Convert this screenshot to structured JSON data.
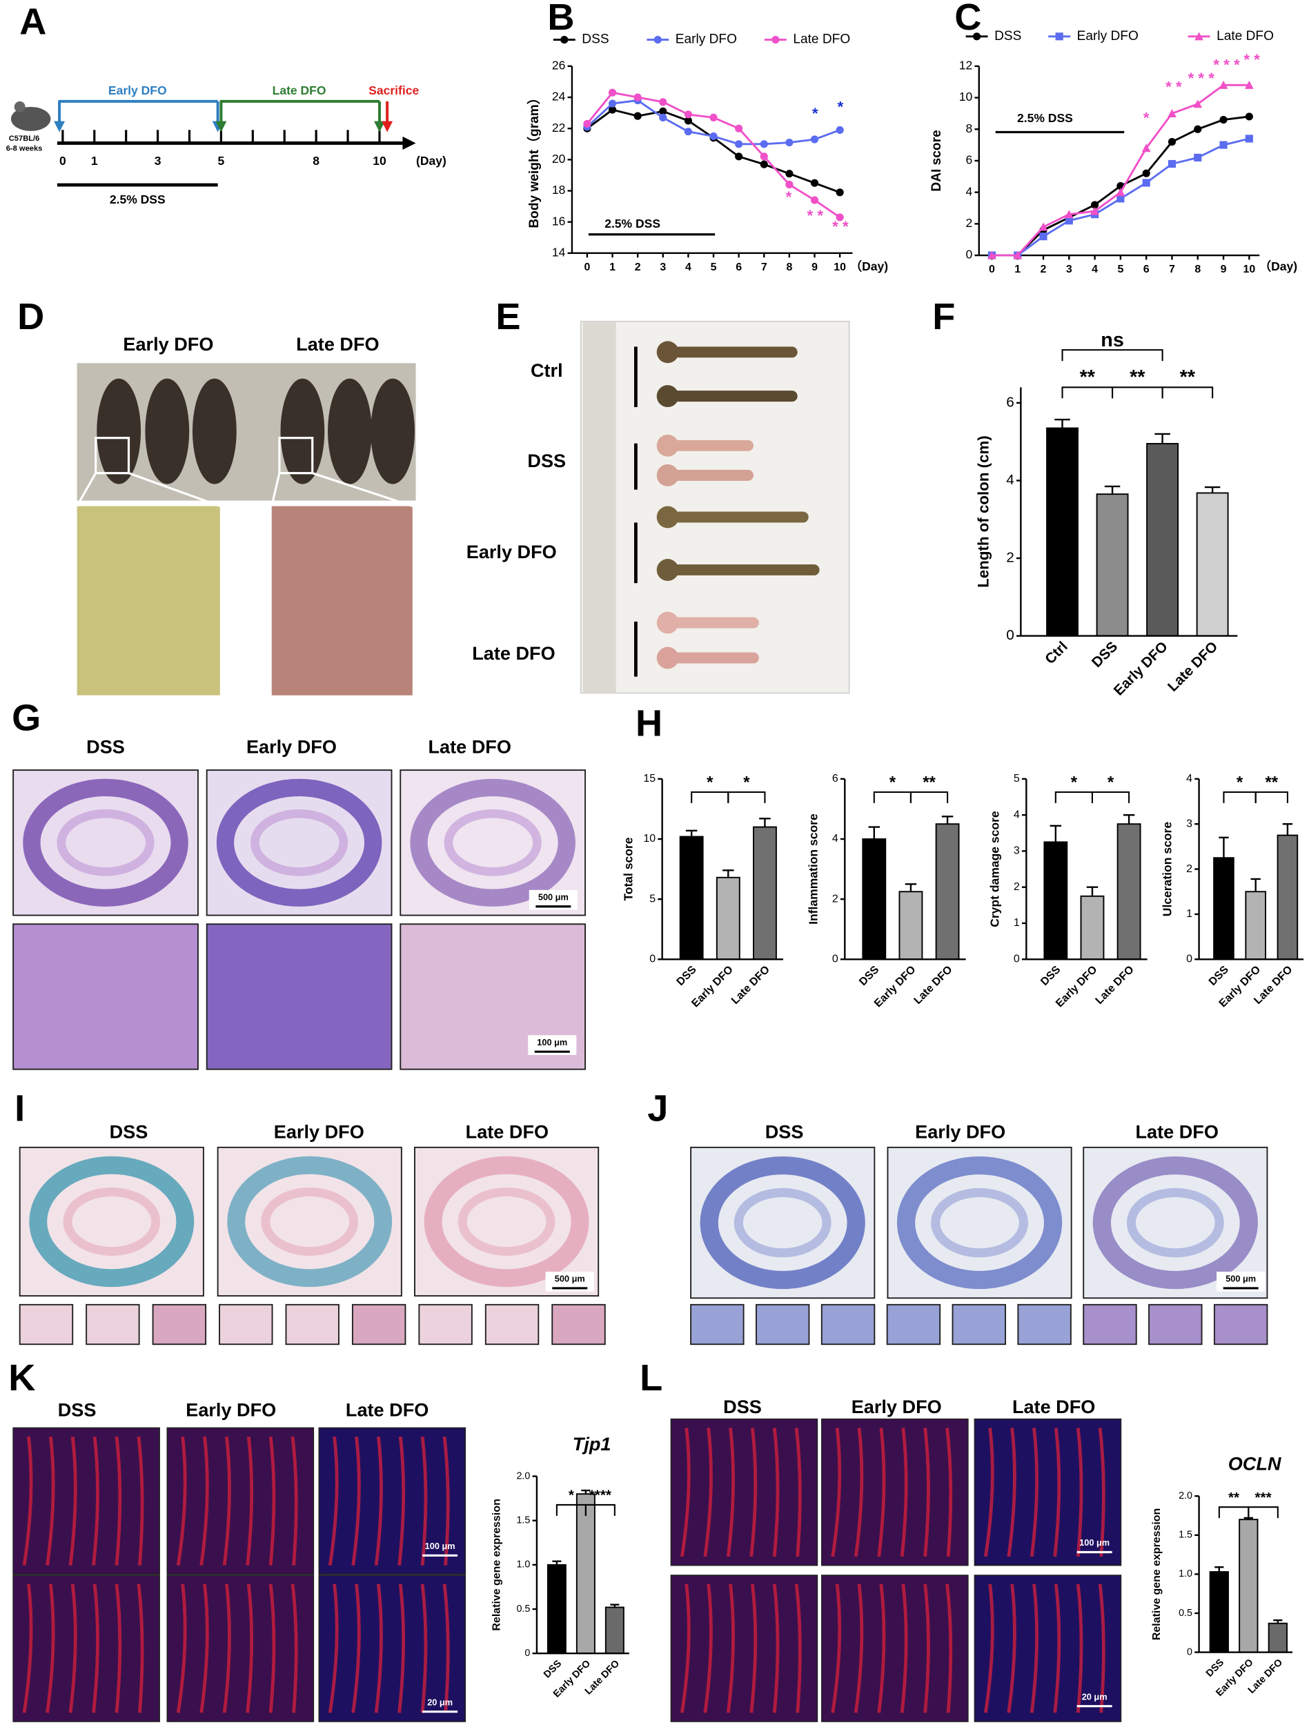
{
  "figure": {
    "panel_letters": [
      "A",
      "B",
      "C",
      "D",
      "E",
      "F",
      "G",
      "H",
      "I",
      "J",
      "K",
      "L"
    ],
    "A": {
      "early_dfo": "Early DFO",
      "late_dfo": "Late DFO",
      "sacrifice": "Sacrifice",
      "strain": "C57BL/6",
      "age": "6-8 weeks",
      "days": [
        0,
        1,
        3,
        5,
        8,
        10
      ],
      "day_unit": "(Day)",
      "dss": "2.5% DSS"
    },
    "D": {
      "groups": [
        "Early DFO",
        "Late  DFO"
      ]
    },
    "E": {
      "groups": [
        "Ctrl",
        "DSS",
        "Early DFO",
        "Late  DFO"
      ]
    },
    "G": {
      "groups": [
        "DSS",
        "Early DFO",
        "Late  DFO"
      ],
      "scale_bars": [
        "500 μm",
        "100 μm"
      ]
    },
    "I": {
      "groups": [
        "DSS",
        "Early DFO",
        "Late  DFO"
      ],
      "scale_bars": [
        "500 μm"
      ]
    },
    "J": {
      "groups": [
        "DSS",
        "Early DFO",
        "Late  DFO"
      ],
      "scale_bars": [
        "500 μm"
      ]
    },
    "K": {
      "groups": [
        "DSS",
        "Early DFO",
        "Late  DFO"
      ],
      "scale_bars": [
        "100 μm",
        "20 μm"
      ]
    },
    "L": {
      "groups": [
        "DSS",
        "Early DFO",
        "Late  DFO"
      ],
      "scale_bars": [
        "100 μm",
        "20 μm"
      ]
    }
  },
  "chart_data": [
    {
      "type": "line",
      "y_label": "Body weight（gram）",
      "x_label": "（Day)",
      "x": [
        0,
        1,
        2,
        3,
        4,
        5,
        6,
        7,
        8,
        9,
        10
      ],
      "xlim": [
        -0.6,
        10.5
      ],
      "xticks": [
        0,
        1,
        2,
        3,
        4,
        5,
        6,
        7,
        8,
        9,
        10
      ],
      "ylim": [
        14,
        26
      ],
      "yticks": [
        14,
        16,
        18,
        20,
        22,
        24,
        26
      ],
      "series": [
        {
          "name": "DSS",
          "color": "#000000",
          "marker": "circle",
          "values": [
            22.0,
            23.2,
            22.8,
            23.1,
            22.5,
            21.4,
            20.2,
            19.7,
            19.1,
            18.5,
            17.9
          ]
        },
        {
          "name": "Early DFO",
          "color": "#5b6cf0",
          "marker": "circle",
          "values": [
            22.1,
            23.6,
            23.8,
            22.7,
            21.8,
            21.5,
            21.0,
            21.0,
            21.1,
            21.3,
            21.9
          ]
        },
        {
          "name": "Late  DFO",
          "color": "#f050c8",
          "marker": "circle",
          "values": [
            22.3,
            24.3,
            24.0,
            23.7,
            22.9,
            22.7,
            22.0,
            20.2,
            18.4,
            17.4,
            16.3
          ]
        }
      ],
      "annotations": [
        {
          "text": "2.5% DSS",
          "color": "#000000"
        },
        {
          "text": "*",
          "color": "#1a2fd0"
        },
        {
          "text": "*",
          "color": "#1a2fd0"
        },
        {
          "text": "*",
          "color": "#f050c8"
        },
        {
          "text": "* *",
          "color": "#f050c8"
        },
        {
          "text": "* *",
          "color": "#f050c8"
        }
      ]
    },
    {
      "type": "line",
      "y_label": "DAI score",
      "x_label": "（Day)",
      "x": [
        0,
        1,
        2,
        3,
        4,
        5,
        6,
        7,
        8,
        9,
        10
      ],
      "xlim": [
        -0.5,
        10.4
      ],
      "xticks": [
        0,
        1,
        2,
        3,
        4,
        5,
        6,
        7,
        8,
        9,
        10
      ],
      "ylim": [
        0,
        12
      ],
      "yticks": [
        0,
        2,
        4,
        6,
        8,
        10,
        12
      ],
      "series": [
        {
          "name": "DSS",
          "color": "#000000",
          "marker": "circle",
          "values": [
            0,
            0,
            1.6,
            2.4,
            3.2,
            4.4,
            5.2,
            7.2,
            8.0,
            8.6,
            8.8
          ]
        },
        {
          "name": "Early DFO",
          "color": "#5b6cf0",
          "marker": "square",
          "values": [
            0,
            0,
            1.2,
            2.2,
            2.6,
            3.6,
            4.6,
            5.8,
            6.2,
            7.0,
            7.4
          ]
        },
        {
          "name": "Late DFO",
          "color": "#f050c8",
          "marker": "triangle",
          "values": [
            0,
            0,
            1.8,
            2.6,
            2.8,
            4.0,
            6.8,
            9.0,
            9.6,
            10.8,
            10.8
          ]
        }
      ],
      "annotations": [
        {
          "text": "2.5% DSS",
          "color": "#000000"
        },
        {
          "text": "*",
          "color": "#f050c8"
        },
        {
          "text": "* *",
          "color": "#f050c8"
        },
        {
          "text": "* * *",
          "color": "#f050c8"
        },
        {
          "text": "* * *",
          "color": "#f050c8"
        },
        {
          "text": "* *",
          "color": "#f050c8"
        }
      ]
    },
    {
      "type": "bar",
      "y_label": "Length of colon (cm)",
      "categories": [
        "Ctrl",
        "DSS",
        "Early DFO",
        "Late DFO"
      ],
      "values": [
        5.35,
        3.65,
        4.95,
        3.68
      ],
      "errors": [
        0.22,
        0.2,
        0.25,
        0.15
      ],
      "colors": [
        "#000000",
        "#8c8c8c",
        "#5a5a5a",
        "#d0d0d0"
      ],
      "ylim": [
        0,
        6.4
      ],
      "yticks": [
        0,
        2,
        4,
        6
      ],
      "annotations": [
        "ns",
        "**",
        "**",
        "**"
      ]
    },
    {
      "type": "bar",
      "y_label": "Total score",
      "categories": [
        "DSS",
        "Early DFO",
        "Late DFO"
      ],
      "values": [
        10.2,
        6.8,
        11.0
      ],
      "errors": [
        0.5,
        0.6,
        0.7
      ],
      "colors": [
        "#000000",
        "#b3b3b3",
        "#707070"
      ],
      "ylim": [
        0,
        15
      ],
      "yticks": [
        0,
        5,
        10,
        15
      ],
      "annotations": [
        "*",
        "*"
      ]
    },
    {
      "type": "bar",
      "y_label": "Inflammation score",
      "categories": [
        "DSS",
        "Early DFO",
        "Late DFO"
      ],
      "values": [
        4.0,
        2.25,
        4.5
      ],
      "errors": [
        0.4,
        0.25,
        0.25
      ],
      "colors": [
        "#000000",
        "#b3b3b3",
        "#707070"
      ],
      "ylim": [
        0,
        6
      ],
      "yticks": [
        0,
        2,
        4,
        6
      ],
      "annotations": [
        "*",
        "**"
      ]
    },
    {
      "type": "bar",
      "y_label": "Crypt damage score",
      "categories": [
        "DSS",
        "Early DFO",
        "Late DFO"
      ],
      "values": [
        3.25,
        1.75,
        3.75
      ],
      "errors": [
        0.45,
        0.25,
        0.25
      ],
      "colors": [
        "#000000",
        "#b3b3b3",
        "#707070"
      ],
      "ylim": [
        0,
        5
      ],
      "yticks": [
        0,
        1,
        2,
        3,
        4,
        5
      ],
      "annotations": [
        "*",
        "*"
      ]
    },
    {
      "type": "bar",
      "y_label": "Ulceration score",
      "categories": [
        "DSS",
        "Early DFO",
        "Late DFO"
      ],
      "values": [
        2.25,
        1.5,
        2.75
      ],
      "errors": [
        0.45,
        0.28,
        0.25
      ],
      "colors": [
        "#000000",
        "#b3b3b3",
        "#707070"
      ],
      "ylim": [
        0,
        4
      ],
      "yticks": [
        0,
        1,
        2,
        3,
        4
      ],
      "annotations": [
        "*",
        "**"
      ]
    },
    {
      "type": "bar",
      "title": "Tjp1",
      "y_label": "Relative gene expression",
      "categories": [
        "DSS",
        "Early DFO",
        "Late DFO"
      ],
      "values": [
        1.0,
        1.8,
        0.52
      ],
      "errors": [
        0.04,
        0.04,
        0.03
      ],
      "colors": [
        "#000000",
        "#a8a8a8",
        "#6a6a6a"
      ],
      "ylim": [
        0,
        2
      ],
      "yticks": [
        0,
        0.5,
        {
          "value": 1,
          "label": "1.0"
        },
        1.5,
        {
          "value": 2,
          "label": "2.0"
        }
      ],
      "annotations": [
        "*",
        "****"
      ]
    },
    {
      "type": "bar",
      "title": "OCLN",
      "y_label": "Relative gene expression",
      "categories": [
        "DSS",
        "Early DFO",
        "Late DFO"
      ],
      "values": [
        1.03,
        1.7,
        0.37
      ],
      "errors": [
        0.06,
        0.02,
        0.04
      ],
      "colors": [
        "#000000",
        "#a8a8a8",
        "#6a6a6a"
      ],
      "ylim": [
        0,
        2
      ],
      "yticks": [
        0,
        0.5,
        {
          "value": 1,
          "label": "1.0"
        },
        1.5,
        {
          "value": 2,
          "label": "2.0"
        }
      ],
      "annotations": [
        "**",
        "***"
      ]
    }
  ]
}
